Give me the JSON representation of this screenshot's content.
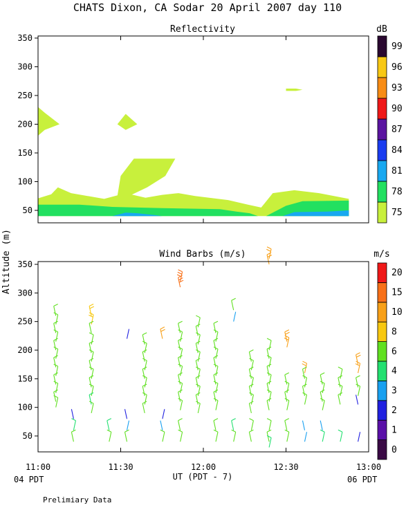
{
  "figure": {
    "title": "CHATS Dixon, CA  Sodar  20 April 2007  day 110",
    "ylabel": "Altitude (m)",
    "xlabel": "UT  (PDT - 7)",
    "start_local": "04 PDT",
    "end_local": "06 PDT",
    "footnote": "Prelimiary Data"
  },
  "chart_data": [
    {
      "type": "heatmap",
      "title": "Reflectivity",
      "colorbar_unit": "dB",
      "x_ticks": [
        "11:00",
        "11:30",
        "12:00",
        "12:30",
        "13:00"
      ],
      "x_range_hours_ut": [
        11.0,
        13.0
      ],
      "y_ticks": [
        50,
        100,
        150,
        200,
        250,
        300,
        350
      ],
      "ylim": [
        30,
        350
      ],
      "levels": [
        {
          "label": "75",
          "color": "#c8f03c"
        },
        {
          "label": "78",
          "color": "#22e060"
        },
        {
          "label": "81",
          "color": "#18a8f0"
        },
        {
          "label": "84",
          "color": "#1a3cf0"
        },
        {
          "label": "87",
          "color": "#5a14a0"
        },
        {
          "label": "90",
          "color": "#f01818"
        },
        {
          "label": "93",
          "color": "#f88c14"
        },
        {
          "label": "96",
          "color": "#f8c814"
        },
        {
          "label": "99",
          "color": "#2a0830"
        }
      ],
      "regions": [
        {
          "level": 0,
          "points": [
            [
              11.0,
              71
            ],
            [
              11.08,
              78
            ],
            [
              11.12,
              90
            ],
            [
              11.2,
              80
            ],
            [
              11.4,
              70
            ],
            [
              11.53,
              80
            ],
            [
              11.65,
              72
            ],
            [
              11.75,
              77
            ],
            [
              11.85,
              80
            ],
            [
              11.95,
              75
            ],
            [
              12.15,
              68
            ],
            [
              12.27,
              60
            ],
            [
              12.35,
              55
            ],
            [
              12.42,
              80
            ],
            [
              12.55,
              85
            ],
            [
              12.7,
              80
            ],
            [
              12.88,
              70
            ],
            [
              12.88,
              40
            ],
            [
              11.0,
              40
            ]
          ]
        },
        {
          "level": 0,
          "points": [
            [
              11.48,
              75
            ],
            [
              11.5,
              110
            ],
            [
              11.58,
              140
            ],
            [
              11.83,
              140
            ],
            [
              11.77,
              110
            ],
            [
              11.66,
              90
            ],
            [
              11.55,
              75
            ]
          ]
        },
        {
          "level": 0,
          "points": [
            [
              11.0,
              230
            ],
            [
              11.04,
              220
            ],
            [
              11.13,
              200
            ],
            [
              11.04,
              190
            ],
            [
              11.0,
              180
            ]
          ]
        },
        {
          "level": 0,
          "points": [
            [
              11.48,
              200
            ],
            [
              11.53,
              218
            ],
            [
              11.6,
              200
            ],
            [
              11.53,
              190
            ]
          ]
        },
        {
          "level": 0,
          "points": [
            [
              12.5,
              262
            ],
            [
              12.56,
              262
            ],
            [
              12.6,
              260
            ],
            [
              12.56,
              258
            ],
            [
              12.5,
              258
            ]
          ]
        },
        {
          "level": 1,
          "points": [
            [
              11.0,
              60
            ],
            [
              11.25,
              60
            ],
            [
              11.45,
              56
            ],
            [
              11.75,
              54
            ],
            [
              12.1,
              52
            ],
            [
              12.2,
              48
            ],
            [
              12.28,
              45
            ],
            [
              12.33,
              40
            ],
            [
              11.0,
              40
            ]
          ]
        },
        {
          "level": 1,
          "points": [
            [
              12.38,
              40
            ],
            [
              12.5,
              58
            ],
            [
              12.6,
              66
            ],
            [
              12.88,
              67
            ],
            [
              12.88,
              40
            ]
          ]
        },
        {
          "level": 2,
          "points": [
            [
              11.45,
              40
            ],
            [
              11.53,
              46
            ],
            [
              11.6,
              45
            ],
            [
              11.7,
              42
            ],
            [
              11.75,
              40
            ]
          ]
        },
        {
          "level": 2,
          "points": [
            [
              12.48,
              40
            ],
            [
              12.55,
              47
            ],
            [
              12.75,
              48
            ],
            [
              12.88,
              50
            ],
            [
              12.88,
              40
            ]
          ]
        }
      ]
    },
    {
      "type": "scatter",
      "title": "Wind Barbs (m/s)",
      "colorbar_unit": "m/s",
      "x_ticks": [
        "11:00",
        "11:30",
        "12:00",
        "12:30",
        "13:00"
      ],
      "x_range_hours_ut": [
        11.0,
        13.0
      ],
      "y_ticks": [
        50,
        100,
        150,
        200,
        250,
        300,
        350
      ],
      "ylim": [
        20,
        375
      ],
      "levels": [
        {
          "label": "0",
          "color": "#3a0a45"
        },
        {
          "label": "1",
          "color": "#5a10a8"
        },
        {
          "label": "2",
          "color": "#2020e0"
        },
        {
          "label": "3",
          "color": "#18a0f0"
        },
        {
          "label": "4",
          "color": "#22e070"
        },
        {
          "label": "6",
          "color": "#60e020"
        },
        {
          "label": "8",
          "color": "#f8c810"
        },
        {
          "label": "10",
          "color": "#f8a018"
        },
        {
          "label": "15",
          "color": "#f87018"
        },
        {
          "label": "20",
          "color": "#f01818"
        }
      ],
      "barbs_ms": [
        [
          [
            215,
            7
          ],
          [
            200,
            6
          ],
          [
            185,
            6
          ],
          [
            170,
            7
          ],
          [
            155,
            6
          ],
          [
            140,
            7
          ],
          [
            125,
            6
          ],
          [
            110,
            6
          ],
          [
            100,
            6
          ],
          [
            260,
            6
          ],
          [
            245,
            6
          ],
          [
            230,
            6
          ]
        ],
        [
          [
            80,
            2
          ],
          [
            60,
            4
          ],
          [
            40,
            6
          ]
        ],
        [
          [
            210,
            6
          ],
          [
            195,
            6
          ],
          [
            180,
            7
          ],
          [
            165,
            6
          ],
          [
            150,
            6
          ],
          [
            135,
            6
          ],
          [
            120,
            6
          ],
          [
            105,
            5
          ],
          [
            90,
            6
          ],
          [
            260,
            9
          ],
          [
            245,
            9
          ],
          [
            230,
            6
          ]
        ],
        [
          [
            60,
            5
          ],
          [
            40,
            6
          ]
        ],
        [
          [
            220,
            2
          ],
          [
            80,
            2
          ],
          [
            60,
            3
          ],
          [
            40,
            6
          ]
        ],
        [
          [
            210,
            6
          ],
          [
            195,
            6
          ],
          [
            180,
            6
          ],
          [
            165,
            6
          ],
          [
            150,
            6
          ],
          [
            135,
            6
          ],
          [
            120,
            6
          ],
          [
            105,
            6
          ],
          [
            90,
            6
          ]
        ],
        [
          [
            80,
            2
          ],
          [
            60,
            3
          ],
          [
            40,
            6
          ],
          [
            220,
            12
          ]
        ],
        [
          [
            310,
            18
          ],
          [
            320,
            18
          ],
          [
            230,
            6
          ],
          [
            215,
            6
          ],
          [
            200,
            6
          ],
          [
            185,
            6
          ],
          [
            170,
            6
          ],
          [
            155,
            6
          ],
          [
            140,
            6
          ],
          [
            125,
            6
          ],
          [
            110,
            6
          ],
          [
            95,
            6
          ],
          [
            60,
            6
          ],
          [
            40,
            6
          ]
        ],
        [
          [
            240,
            6
          ],
          [
            225,
            6
          ],
          [
            210,
            6
          ],
          [
            195,
            6
          ],
          [
            180,
            6
          ],
          [
            165,
            6
          ],
          [
            150,
            6
          ],
          [
            135,
            6
          ],
          [
            120,
            6
          ],
          [
            105,
            6
          ],
          [
            90,
            6
          ]
        ],
        [
          [
            230,
            6
          ],
          [
            215,
            6
          ],
          [
            200,
            6
          ],
          [
            185,
            6
          ],
          [
            170,
            6
          ],
          [
            155,
            6
          ],
          [
            140,
            6
          ],
          [
            125,
            6
          ],
          [
            110,
            6
          ],
          [
            95,
            6
          ],
          [
            60,
            6
          ],
          [
            40,
            6
          ]
        ],
        [
          [
            250,
            3
          ],
          [
            60,
            4
          ],
          [
            40,
            6
          ],
          [
            270,
            6
          ]
        ],
        [
          [
            180,
            7
          ],
          [
            165,
            6
          ],
          [
            150,
            6
          ],
          [
            135,
            6
          ],
          [
            120,
            6
          ],
          [
            105,
            6
          ],
          [
            90,
            6
          ],
          [
            60,
            6
          ],
          [
            40,
            6
          ]
        ],
        [
          [
            360,
            12
          ],
          [
            350,
            12
          ],
          [
            200,
            6
          ],
          [
            185,
            6
          ],
          [
            170,
            6
          ],
          [
            155,
            6
          ],
          [
            140,
            6
          ],
          [
            125,
            6
          ],
          [
            110,
            6
          ],
          [
            95,
            6
          ],
          [
            60,
            6
          ],
          [
            40,
            6
          ],
          [
            30,
            5
          ]
        ],
        [
          [
            215,
            12
          ],
          [
            205,
            12
          ],
          [
            140,
            6
          ],
          [
            125,
            6
          ],
          [
            110,
            6
          ],
          [
            95,
            6
          ],
          [
            60,
            6
          ],
          [
            40,
            6
          ]
        ],
        [
          [
            160,
            10
          ],
          [
            150,
            6
          ],
          [
            135,
            6
          ],
          [
            120,
            6
          ],
          [
            105,
            6
          ],
          [
            60,
            3
          ],
          [
            40,
            3
          ]
        ],
        [
          [
            140,
            6
          ],
          [
            125,
            6
          ],
          [
            110,
            6
          ],
          [
            95,
            6
          ],
          [
            60,
            3
          ],
          [
            40,
            4
          ]
        ],
        [
          [
            150,
            6
          ],
          [
            135,
            6
          ],
          [
            120,
            6
          ],
          [
            105,
            6
          ],
          [
            40,
            4
          ]
        ],
        [
          [
            175,
            12
          ],
          [
            160,
            12
          ],
          [
            135,
            6
          ],
          [
            120,
            6
          ],
          [
            105,
            2
          ],
          [
            40,
            2
          ]
        ]
      ]
    }
  ]
}
